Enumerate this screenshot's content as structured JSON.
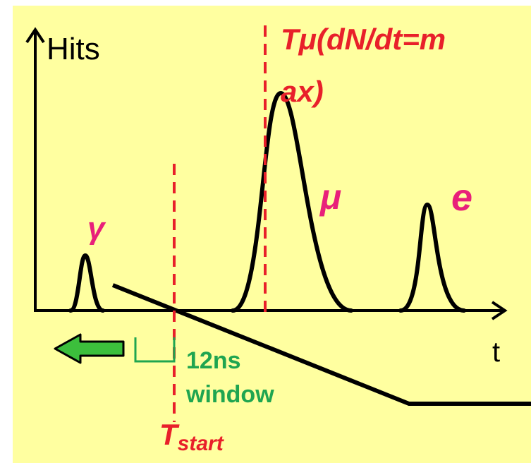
{
  "colors": {
    "background": "#ffffa0",
    "axis": "#000000",
    "dashed_line": "#e8202a",
    "particle_label": "#e8207a",
    "window_label": "#1fa550",
    "arrow_fill": "#3cbf3c"
  },
  "axes": {
    "y_label": "Hits",
    "x_label": "t"
  },
  "markers": {
    "t_mu_label": "Tμ(dN/dt=max)",
    "t_mu_line1": "Tμ(dN/dt=m",
    "t_mu_line2": "ax)",
    "t_start_prefix": "T",
    "t_start_sub": "start"
  },
  "peaks": {
    "gamma": "γ",
    "mu": "μ",
    "e": "e"
  },
  "window": {
    "line1": "12ns",
    "line2": "window"
  }
}
